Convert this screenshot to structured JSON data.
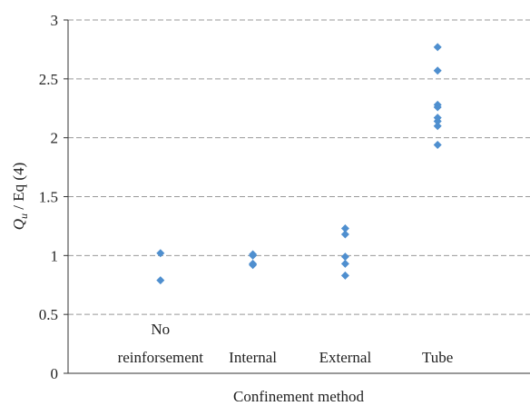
{
  "chart_data": {
    "type": "strip",
    "x_label": "Confinement method",
    "y_label": {
      "symbol": "Q",
      "subscript": "u",
      "text": " / Eq (4)"
    },
    "categories": [
      "No\nreinforsement",
      "Internal",
      "External",
      "Tube"
    ],
    "values": [
      [
        1.02,
        0.79
      ],
      [
        1.01,
        1.0,
        0.93,
        0.92
      ],
      [
        1.23,
        1.18,
        0.99,
        0.93,
        0.83
      ],
      [
        2.77,
        2.57,
        2.28,
        2.26,
        2.17,
        2.14,
        2.1,
        1.94
      ]
    ],
    "color": "#4f8fcf",
    "ylim": [
      0,
      3
    ],
    "yticks": [
      0,
      0.5,
      1,
      1.5,
      2,
      2.5,
      3
    ],
    "grid": true
  }
}
